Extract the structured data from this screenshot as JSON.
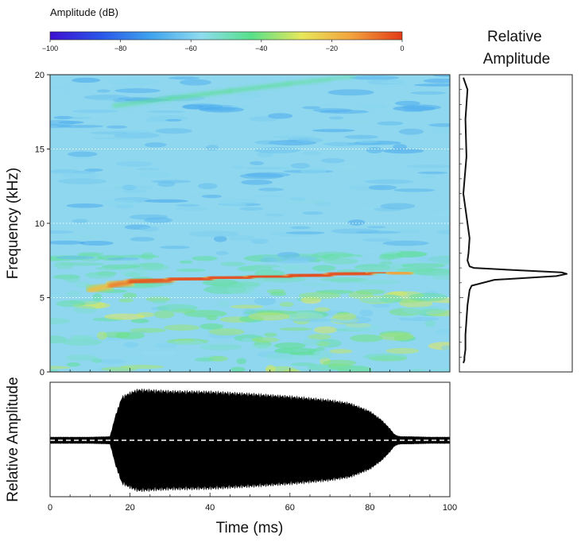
{
  "chart_data": [
    {
      "type": "heatmap",
      "role": "colorbar",
      "title": "Amplitude (dB)",
      "ticks": [
        -100,
        -80,
        -60,
        -40,
        -20,
        0
      ],
      "tick_labels": [
        "−100",
        "−80",
        "−60",
        "−40",
        "−20",
        "0"
      ],
      "range": [
        -100,
        0
      ],
      "colormap": [
        "#3d0fd0",
        "#2a55e8",
        "#3fa3ee",
        "#8fdcef",
        "#57e08a",
        "#e8e85a",
        "#f2a23c",
        "#e23b16"
      ]
    },
    {
      "type": "heatmap",
      "role": "spectrogram",
      "xlabel": "Time (ms)",
      "ylabel": "Frequency (kHz)",
      "xlim": [
        0,
        100
      ],
      "ylim": [
        0,
        20
      ],
      "yticks": [
        0,
        5,
        10,
        15,
        20
      ],
      "grid": "dotted lines at 5, 10 and 15 kHz",
      "background_color": "#8ed7ef",
      "features": [
        {
          "component": "fundamental",
          "time_ms": [
            10,
            15,
            20,
            30,
            40,
            50,
            60,
            70,
            80,
            85,
            90
          ],
          "freq_khz": [
            5.5,
            5.8,
            6.05,
            6.2,
            6.3,
            6.38,
            6.45,
            6.55,
            6.65,
            6.68,
            6.6
          ],
          "level_db": [
            -25,
            -15,
            -4,
            -2,
            -2,
            -1,
            -1,
            -1,
            -2,
            -6,
            -22
          ]
        },
        {
          "component": "harmonic",
          "time_ms": [
            16,
            30,
            45,
            60,
            70,
            76
          ],
          "freq_khz": [
            17.9,
            18.4,
            18.9,
            19.4,
            19.7,
            19.9
          ],
          "level_db": [
            -48,
            -45,
            -45,
            -46,
            -48,
            -52
          ]
        }
      ]
    },
    {
      "type": "line",
      "role": "power-spectrum",
      "title": "Relative Amplitude",
      "x_meaning": "relative amplitude (0-1)",
      "y_meaning": "frequency (kHz)",
      "ylim": [
        0,
        20
      ],
      "xlim": [
        0,
        1
      ],
      "x": [
        0.0,
        0.04,
        0.02,
        0.03,
        0.0,
        0.06,
        0.05,
        0.04,
        0.06,
        0.1,
        0.5,
        0.95,
        1.0,
        0.9,
        0.3,
        0.08,
        0.06,
        0.04,
        0.03,
        0.02,
        0.02,
        0.01,
        0.01,
        0.0
      ],
      "y": [
        19.8,
        19.0,
        17.0,
        14.5,
        12.0,
        9.0,
        8.0,
        7.5,
        7.1,
        7.0,
        6.85,
        6.7,
        6.6,
        6.45,
        6.2,
        5.8,
        5.5,
        4.5,
        3.5,
        2.5,
        1.5,
        1.0,
        0.8,
        0.6
      ]
    },
    {
      "type": "area",
      "role": "waveform",
      "ylabel": "Relative Amplitude",
      "xlabel": "Time (ms)",
      "xlim": [
        0,
        100
      ],
      "xticks": [
        0,
        20,
        40,
        60,
        80,
        100
      ],
      "ylim": [
        -1,
        1
      ],
      "envelope_time_ms": [
        0,
        10,
        15,
        16.5,
        18,
        20,
        22,
        25,
        30,
        40,
        50,
        60,
        70,
        75,
        80,
        83,
        85,
        86,
        87,
        88,
        90,
        95,
        100
      ],
      "envelope_amplitude": [
        0.06,
        0.06,
        0.07,
        0.5,
        0.82,
        0.9,
        0.96,
        0.95,
        0.93,
        0.92,
        0.88,
        0.83,
        0.76,
        0.7,
        0.55,
        0.38,
        0.22,
        0.12,
        0.08,
        0.07,
        0.07,
        0.06,
        0.06
      ],
      "baseline": "dashed zero line"
    }
  ]
}
